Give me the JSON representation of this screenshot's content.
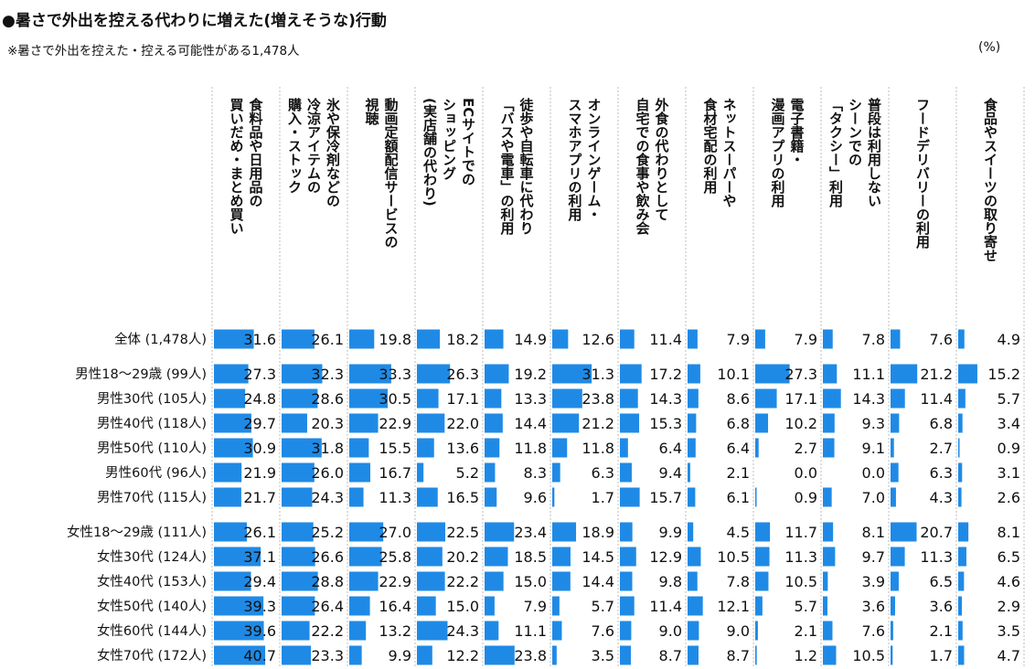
{
  "title": "●暑さで外出を控える代わりに増えた(増えそうな)行動",
  "subtitle": "※暑さで外出を控えた・控える可能性がある1,478人",
  "unit": "(%)",
  "colors": {
    "bar": "#1f8ae6",
    "grid": "#bdbdbd",
    "text": "#111111"
  },
  "chart_data": {
    "type": "bar",
    "orientation": "horizontal-table",
    "categories": [
      "食料品や日用品の買いだめ・まとめ買い",
      "氷や保冷剤などの冷涼アイテムの購入・ストック",
      "動画定額配信サービスの視聴",
      "ECサイトでのショッピング(実店舗の代わり)",
      "徒歩や自転車に代わり「バスや電車」の利用",
      "オンラインゲーム・スマホアプリの利用",
      "外食の代わりとして自宅での食事や飲み会",
      "ネットスーパーや食材宅配の利用",
      "電子書籍・漫画アプリの利用",
      "普段は利用しないシーンでの「タクシー」利用",
      "フードデリバリーの利用",
      "食品やスイーツの取り寄せ"
    ],
    "header_lines": [
      [
        "食料品や日用品の",
        "買いだめ・まとめ買い"
      ],
      [
        "氷や保冷剤などの",
        "冷涼アイテムの",
        "購入・ストック"
      ],
      [
        "動画定額配信サービスの",
        "視聴"
      ],
      [
        "ECサイトでの",
        "ショッピング",
        "(実店舗の代わり)"
      ],
      [
        "徒歩や自転車に代わり",
        "「バスや電車」の利用"
      ],
      [
        "オンラインゲーム・",
        "スマホアプリの利用"
      ],
      [
        "外食の代わりとして",
        "自宅での食事や飲み会"
      ],
      [
        "ネットスーパーや",
        "食材宅配の利用"
      ],
      [
        "電子書籍・",
        "漫画アプリの利用"
      ],
      [
        "普段は利用しない",
        "シーンでの",
        "「タクシー」利用"
      ],
      [
        "フードデリバリーの利用"
      ],
      [
        "食品やスイーツの取り寄せ"
      ]
    ],
    "scale_max": 45,
    "rows": [
      {
        "label": "全体 (1,478人)",
        "values": [
          31.6,
          26.1,
          19.8,
          18.2,
          14.9,
          12.6,
          11.4,
          7.9,
          7.9,
          7.8,
          7.6,
          4.9
        ]
      },
      {
        "label": "男性18～29歳 (99人)",
        "values": [
          27.3,
          32.3,
          33.3,
          26.3,
          19.2,
          31.3,
          17.2,
          10.1,
          27.3,
          11.1,
          21.2,
          15.2
        ]
      },
      {
        "label": "男性30代 (105人)",
        "values": [
          24.8,
          28.6,
          30.5,
          17.1,
          13.3,
          23.8,
          14.3,
          8.6,
          17.1,
          14.3,
          11.4,
          5.7
        ]
      },
      {
        "label": "男性40代 (118人)",
        "values": [
          29.7,
          20.3,
          22.9,
          22.0,
          14.4,
          21.2,
          15.3,
          6.8,
          10.2,
          9.3,
          6.8,
          3.4
        ]
      },
      {
        "label": "男性50代 (110人)",
        "values": [
          30.9,
          31.8,
          15.5,
          13.6,
          11.8,
          11.8,
          6.4,
          6.4,
          2.7,
          9.1,
          2.7,
          0.9
        ]
      },
      {
        "label": "男性60代 (96人)",
        "values": [
          21.9,
          26.0,
          16.7,
          5.2,
          8.3,
          6.3,
          9.4,
          2.1,
          0.0,
          0.0,
          6.3,
          3.1
        ]
      },
      {
        "label": "男性70代 (115人)",
        "values": [
          21.7,
          24.3,
          11.3,
          16.5,
          9.6,
          1.7,
          15.7,
          6.1,
          0.9,
          7.0,
          4.3,
          2.6
        ]
      },
      {
        "label": "女性18～29歳 (111人)",
        "values": [
          26.1,
          25.2,
          27.0,
          22.5,
          23.4,
          18.9,
          9.9,
          4.5,
          11.7,
          8.1,
          20.7,
          8.1
        ]
      },
      {
        "label": "女性30代 (124人)",
        "values": [
          37.1,
          26.6,
          25.8,
          20.2,
          18.5,
          14.5,
          12.9,
          10.5,
          11.3,
          9.7,
          11.3,
          6.5
        ]
      },
      {
        "label": "女性40代 (153人)",
        "values": [
          29.4,
          28.8,
          22.9,
          22.2,
          15.0,
          14.4,
          9.8,
          7.8,
          10.5,
          3.9,
          6.5,
          4.6
        ]
      },
      {
        "label": "女性50代 (140人)",
        "values": [
          39.3,
          26.4,
          16.4,
          15.0,
          7.9,
          5.7,
          11.4,
          12.1,
          5.7,
          3.6,
          3.6,
          2.9
        ]
      },
      {
        "label": "女性60代 (144人)",
        "values": [
          39.6,
          22.2,
          13.2,
          24.3,
          11.1,
          7.6,
          9.0,
          9.0,
          2.1,
          7.6,
          2.1,
          3.5
        ]
      },
      {
        "label": "女性70代 (172人)",
        "values": [
          40.7,
          23.3,
          9.9,
          12.2,
          23.8,
          3.5,
          8.7,
          8.7,
          1.2,
          10.5,
          1.7,
          4.7
        ]
      }
    ]
  }
}
